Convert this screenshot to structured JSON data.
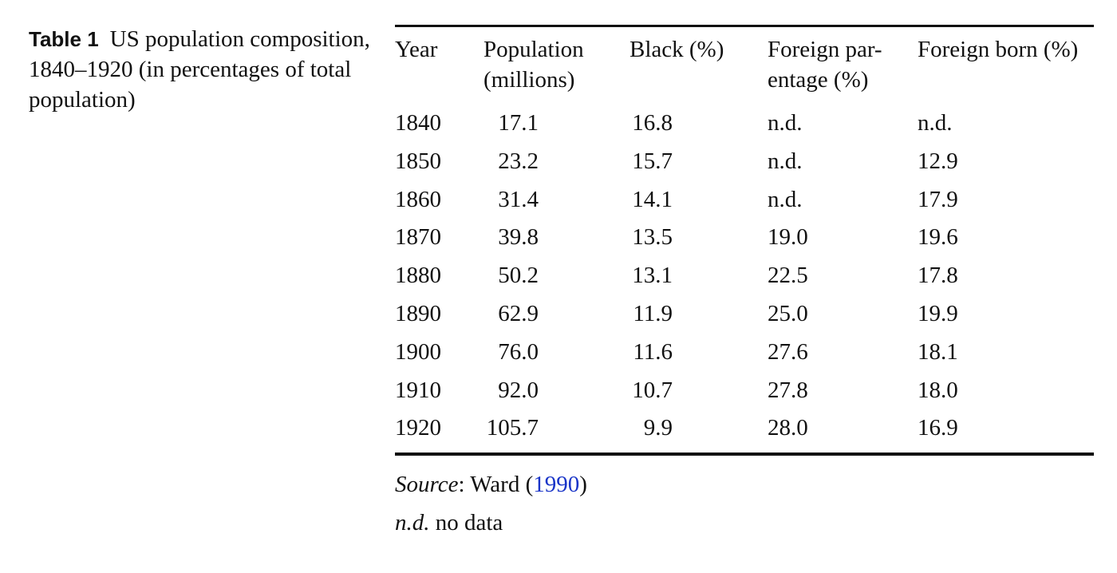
{
  "caption": {
    "label": "Table 1",
    "text": "US population composition, 1840–1920 (in percentages of total population)"
  },
  "table": {
    "columns": [
      "Year",
      "Population (millions)",
      "Black (%)",
      "Foreign par- entage (%)",
      "Foreign born (%)"
    ],
    "header_lines": {
      "year": "Year",
      "pop_1": "Population",
      "pop_2": "(millions)",
      "black": "Black (%)",
      "fp_1": "Foreign par-",
      "fp_2": "entage (%)",
      "fb": "Foreign born (%)"
    },
    "rows": [
      [
        "1840",
        "17.1",
        "16.8",
        "n.d.",
        "n.d."
      ],
      [
        "1850",
        "23.2",
        "15.7",
        "n.d.",
        "12.9"
      ],
      [
        "1860",
        "31.4",
        "14.1",
        "n.d.",
        "17.9"
      ],
      [
        "1870",
        "39.8",
        "13.5",
        "19.0",
        "19.6"
      ],
      [
        "1880",
        "50.2",
        "13.1",
        "22.5",
        "17.8"
      ],
      [
        "1890",
        "62.9",
        "11.9",
        "25.0",
        "19.9"
      ],
      [
        "1900",
        "76.0",
        "11.6",
        "27.6",
        "18.1"
      ],
      [
        "1910",
        "92.0",
        "10.7",
        "27.8",
        "18.0"
      ],
      [
        "1920",
        "105.7",
        "9.9",
        "28.0",
        "16.9"
      ]
    ]
  },
  "footnotes": {
    "source_label": "Source",
    "source_sep": ": ",
    "source_author": "Ward (",
    "source_year": "1990",
    "source_close": ")",
    "nd_abbrev": "n.d.",
    "nd_text": " no data"
  },
  "colors": {
    "text": "#111111",
    "link": "#1a35c8",
    "rule": "#111111"
  }
}
